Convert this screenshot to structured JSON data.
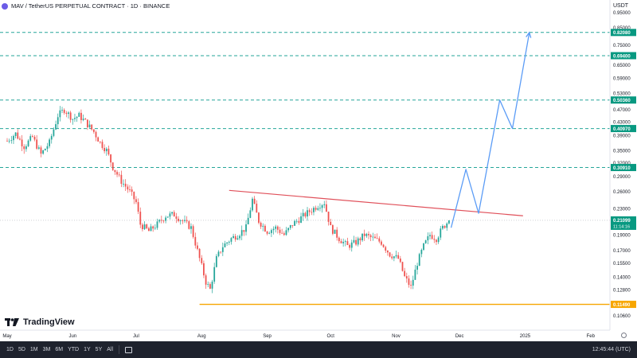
{
  "header": {
    "symbol": "MAV / TetherUS PERPETUAL CONTRACT · 1D · BINANCE",
    "currency": "USDT"
  },
  "brand": {
    "name": "TradingView"
  },
  "toolbar": {
    "timeframes": [
      "1D",
      "5D",
      "1M",
      "3M",
      "6M",
      "YTD",
      "1Y",
      "5Y",
      "All"
    ],
    "clock": "12:45:44 (UTC)"
  },
  "colors": {
    "up": "#26a69a",
    "down": "#ef5350",
    "level_line": "#26a69a",
    "trendline": "#e0505a",
    "support": "#f7a600",
    "projection": "#5b9cf6",
    "label_bg": "#089981",
    "support_label_bg": "#f7a600",
    "current_label_bg": "#089981"
  },
  "chart_data": {
    "type": "candlestick",
    "title": "MAV / TetherUS PERPETUAL CONTRACT · 1D · BINANCE",
    "y_scale": "log",
    "ylim": [
      0.097,
      0.98
    ],
    "x_ticks": [
      "May",
      "Jun",
      "Jul",
      "Aug",
      "Sep",
      "Oct",
      "Nov",
      "Dec",
      "2025",
      "Feb"
    ],
    "x_tick_dates": [
      "2024-05-01",
      "2024-06-01",
      "2024-07-01",
      "2024-08-01",
      "2024-09-01",
      "2024-10-01",
      "2024-11-01",
      "2024-12-01",
      "2025-01-01",
      "2025-02-01"
    ],
    "y_ticks": [
      "0.95000",
      "0.85000",
      "0.75000",
      "0.65000",
      "0.59000",
      "0.53000",
      "0.47000",
      "0.43000",
      "0.39000",
      "0.35000",
      "0.32000",
      "0.29000",
      "0.26000",
      "0.23000",
      "0.19000",
      "0.17000",
      "0.15500",
      "0.14000",
      "0.12800",
      "0.10600"
    ],
    "y_tick_values": [
      0.95,
      0.85,
      0.75,
      0.65,
      0.59,
      0.53,
      0.47,
      0.43,
      0.39,
      0.35,
      0.32,
      0.29,
      0.26,
      0.23,
      0.19,
      0.17,
      0.155,
      0.14,
      0.128,
      0.106
    ],
    "levels": [
      {
        "value": 0.8208,
        "label": "0.82080"
      },
      {
        "value": 0.694,
        "label": "0.69400"
      },
      {
        "value": 0.5036,
        "label": "0.50360"
      },
      {
        "value": 0.4097,
        "label": "0.40970"
      },
      {
        "value": 0.3091,
        "label": "0.30910"
      }
    ],
    "support": {
      "value": 0.1149,
      "label": "0.11490",
      "start": "2024-07-31"
    },
    "current": {
      "value": 0.21099,
      "label": "0.21099",
      "countdown": "11:14:16"
    },
    "trendline": [
      [
        "2024-08-14",
        0.262
      ],
      [
        "2024-12-31",
        0.218
      ]
    ],
    "projection": [
      [
        "2024-11-27",
        0.2
      ],
      [
        "2024-12-04",
        0.305
      ],
      [
        "2024-12-10",
        0.222
      ],
      [
        "2024-12-20",
        0.5036
      ],
      [
        "2024-12-26",
        0.4097
      ],
      [
        "2025-01-03",
        0.8208
      ]
    ],
    "ohlc_anchors": [
      [
        "2024-05-01",
        0.375
      ],
      [
        "2024-05-05",
        0.395
      ],
      [
        "2024-05-09",
        0.36
      ],
      [
        "2024-05-13",
        0.385
      ],
      [
        "2024-05-17",
        0.34
      ],
      [
        "2024-05-21",
        0.37
      ],
      [
        "2024-05-25",
        0.45
      ],
      [
        "2024-05-28",
        0.47
      ],
      [
        "2024-06-01",
        0.44
      ],
      [
        "2024-06-04",
        0.45
      ],
      [
        "2024-06-07",
        0.43
      ],
      [
        "2024-06-11",
        0.4
      ],
      [
        "2024-06-14",
        0.37
      ],
      [
        "2024-06-17",
        0.35
      ],
      [
        "2024-06-20",
        0.31
      ],
      [
        "2024-06-24",
        0.28
      ],
      [
        "2024-06-28",
        0.26
      ],
      [
        "2024-07-01",
        0.24
      ],
      [
        "2024-07-03",
        0.205
      ],
      [
        "2024-07-07",
        0.195
      ],
      [
        "2024-07-11",
        0.205
      ],
      [
        "2024-07-15",
        0.218
      ],
      [
        "2024-07-19",
        0.22
      ],
      [
        "2024-07-23",
        0.21
      ],
      [
        "2024-07-27",
        0.2
      ],
      [
        "2024-07-31",
        0.16
      ],
      [
        "2024-08-03",
        0.135
      ],
      [
        "2024-08-05",
        0.128
      ],
      [
        "2024-08-08",
        0.16
      ],
      [
        "2024-08-11",
        0.175
      ],
      [
        "2024-08-15",
        0.185
      ],
      [
        "2024-08-18",
        0.19
      ],
      [
        "2024-08-22",
        0.2
      ],
      [
        "2024-08-25",
        0.245
      ],
      [
        "2024-08-28",
        0.21
      ],
      [
        "2024-09-01",
        0.195
      ],
      [
        "2024-09-05",
        0.2
      ],
      [
        "2024-09-09",
        0.19
      ],
      [
        "2024-09-13",
        0.205
      ],
      [
        "2024-09-17",
        0.215
      ],
      [
        "2024-09-21",
        0.225
      ],
      [
        "2024-09-25",
        0.235
      ],
      [
        "2024-09-28",
        0.24
      ],
      [
        "2024-10-01",
        0.2
      ],
      [
        "2024-10-05",
        0.185
      ],
      [
        "2024-10-09",
        0.175
      ],
      [
        "2024-10-13",
        0.18
      ],
      [
        "2024-10-17",
        0.19
      ],
      [
        "2024-10-21",
        0.185
      ],
      [
        "2024-10-25",
        0.18
      ],
      [
        "2024-10-29",
        0.165
      ],
      [
        "2024-11-02",
        0.16
      ],
      [
        "2024-11-05",
        0.14
      ],
      [
        "2024-11-08",
        0.13
      ],
      [
        "2024-11-11",
        0.155
      ],
      [
        "2024-11-14",
        0.175
      ],
      [
        "2024-11-17",
        0.19
      ],
      [
        "2024-11-20",
        0.185
      ],
      [
        "2024-11-23",
        0.2
      ],
      [
        "2024-11-26",
        0.211
      ]
    ]
  }
}
